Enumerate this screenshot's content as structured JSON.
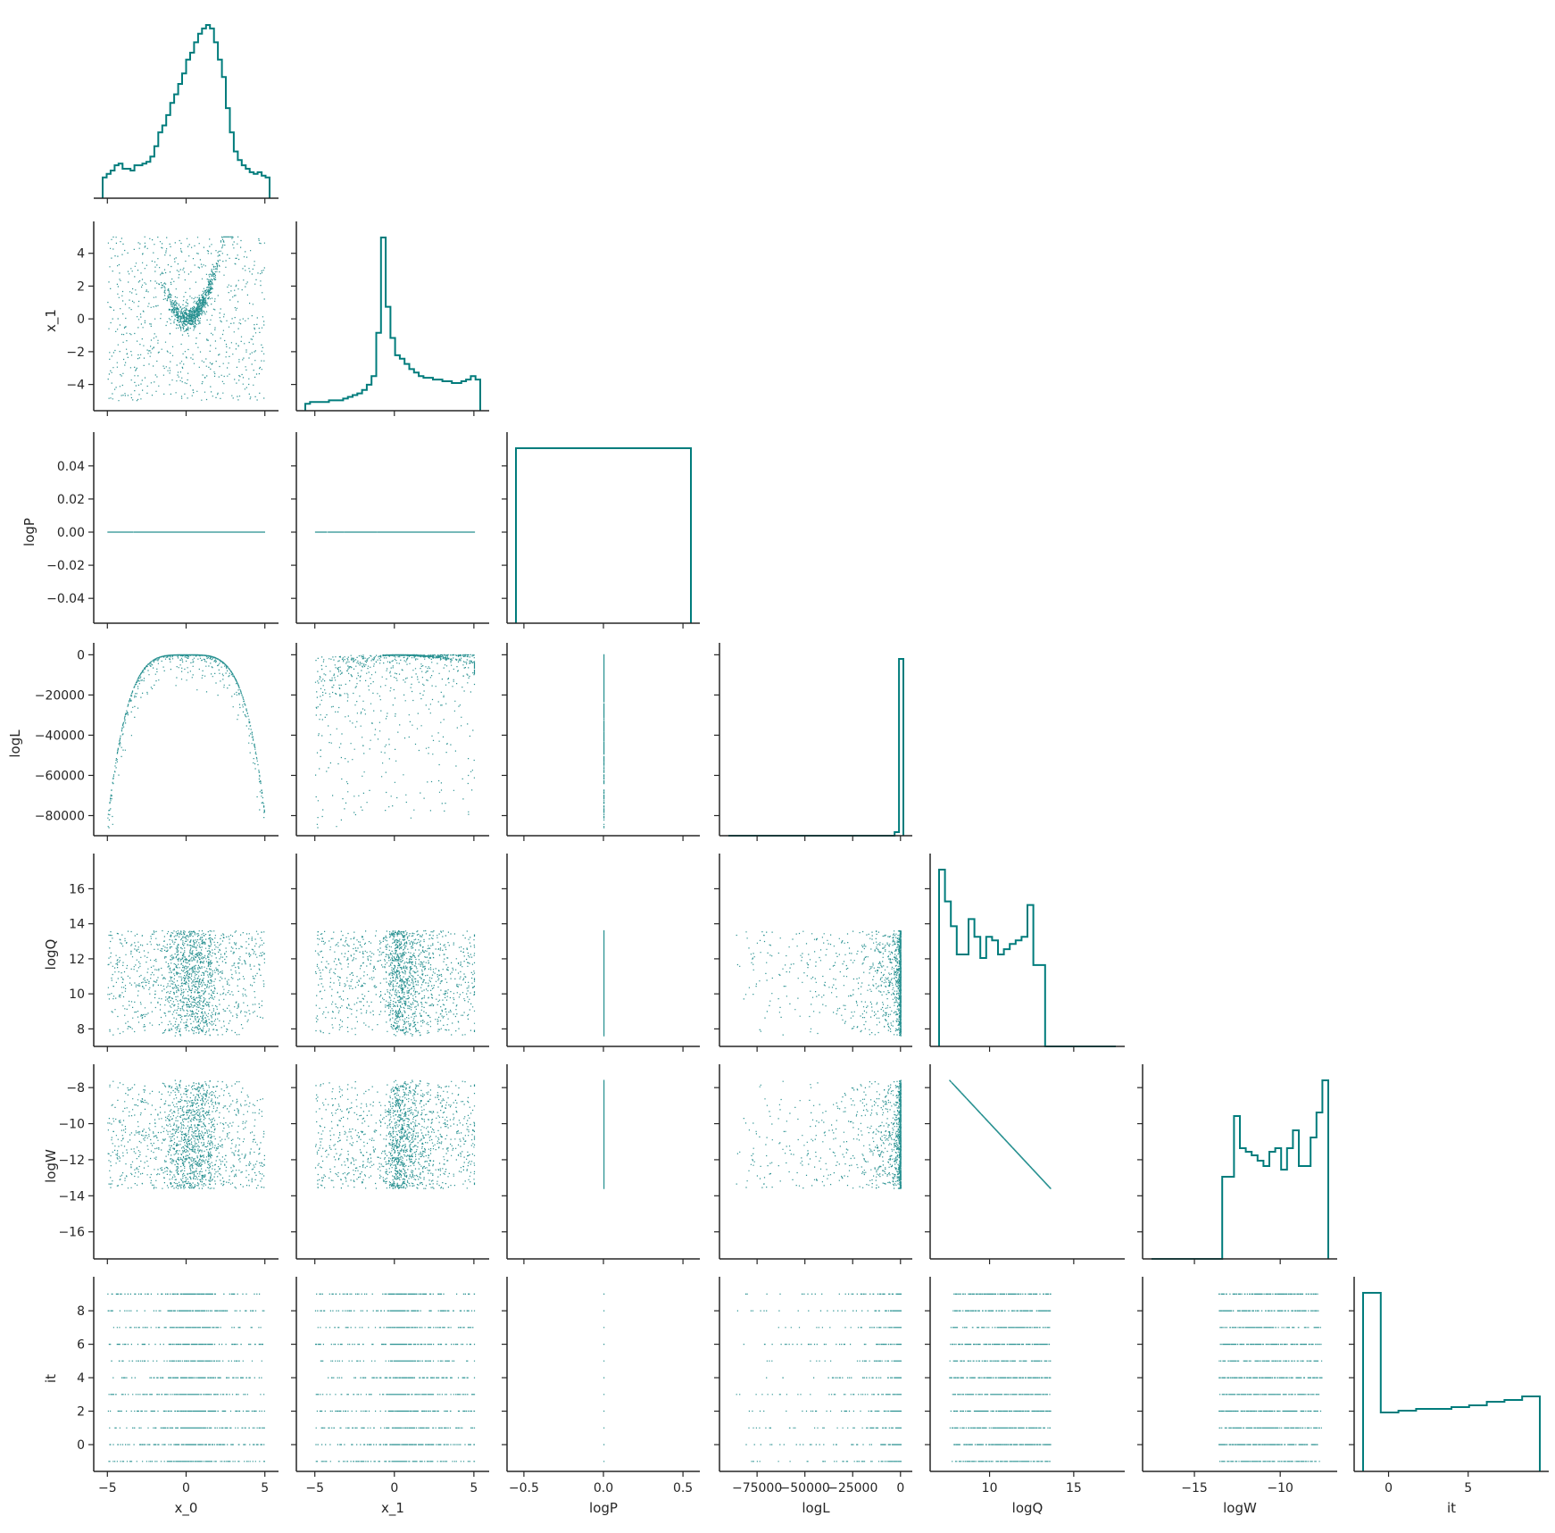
{
  "chart_data": {
    "type": "pairplot",
    "title": "",
    "color": "#007c7c",
    "variables": [
      "x_0",
      "x_1",
      "logP",
      "logL",
      "logQ",
      "logW",
      "it"
    ],
    "ranges": {
      "x_0": [
        -5.3,
        5.3
      ],
      "x_1": [
        -5.6,
        5.4
      ],
      "logP": [
        -0.055,
        0.055
      ],
      "logL": [
        -90000,
        1500
      ],
      "logQ": [
        7.0,
        17.5
      ],
      "logW": [
        -17.5,
        -7.2
      ],
      "it": [
        -1.6,
        9.5
      ]
    },
    "ticks": {
      "x_0": [
        -5,
        0,
        5
      ],
      "x_1": [
        -4,
        -2,
        0,
        2,
        4
      ],
      "logP": [
        -0.04,
        -0.02,
        0.0,
        0.02,
        0.04
      ],
      "logL": [
        -80000,
        -60000,
        -40000,
        -20000,
        0
      ],
      "logQ": [
        8,
        10,
        12,
        14,
        16
      ],
      "logW": [
        -16,
        -14,
        -12,
        -10,
        -8
      ],
      "it": [
        0,
        2,
        4,
        6,
        8
      ]
    },
    "tick_labels": {
      "x_0": [
        "−5",
        "0",
        "5"
      ],
      "x_1y": [
        "−4",
        "−2",
        "0",
        "2",
        "4"
      ],
      "x_1x": [
        "−5",
        "0",
        "5"
      ],
      "logPy": [
        "−0.04",
        "−0.02",
        "0.00",
        "0.02",
        "0.04"
      ],
      "logPx": [
        "−0.5",
        "0.0",
        "0.5"
      ],
      "logLy": [
        "−80000",
        "−60000",
        "−40000",
        "−20000",
        "0"
      ],
      "logLx": [
        "−75000",
        "−50000",
        "−25000",
        "0"
      ],
      "logQ": [
        "8",
        "10",
        "12",
        "14",
        "16"
      ],
      "logQx": [
        "10",
        "15"
      ],
      "logW": [
        "−16",
        "−14",
        "−12",
        "−10",
        "−8"
      ],
      "logWx": [
        "−15",
        "−10"
      ],
      "ity": [
        "0",
        "2",
        "4",
        "6",
        "8"
      ],
      "itx": [
        "0",
        "5"
      ]
    },
    "x_tick_values": {
      "x_0": [
        -5,
        0,
        5
      ],
      "x_1": [
        -5,
        0,
        5
      ],
      "logP": [
        -0.5,
        0.0,
        0.5
      ],
      "logL": [
        -75000,
        -50000,
        -25000,
        0
      ],
      "logQ": [
        10,
        15
      ],
      "logW": [
        -15,
        -10
      ],
      "it": [
        0,
        5
      ]
    },
    "x_ranges": {
      "logP": [
        -0.55,
        0.55
      ]
    },
    "histograms": {
      "x_0": [
        0.12,
        0.14,
        0.16,
        0.19,
        0.2,
        0.17,
        0.17,
        0.16,
        0.19,
        0.19,
        0.2,
        0.21,
        0.24,
        0.3,
        0.38,
        0.42,
        0.48,
        0.55,
        0.6,
        0.66,
        0.72,
        0.8,
        0.84,
        0.9,
        0.95,
        0.98,
        1.0,
        0.98,
        0.9,
        0.8,
        0.7,
        0.52,
        0.38,
        0.27,
        0.22,
        0.19,
        0.17,
        0.15,
        0.14,
        0.15,
        0.13,
        0.12
      ],
      "x_1": [
        0.04,
        0.05,
        0.05,
        0.05,
        0.05,
        0.06,
        0.06,
        0.06,
        0.07,
        0.08,
        0.09,
        0.1,
        0.12,
        0.15,
        0.2,
        0.45,
        1.0,
        0.6,
        0.42,
        0.32,
        0.3,
        0.27,
        0.24,
        0.22,
        0.2,
        0.19,
        0.19,
        0.18,
        0.18,
        0.17,
        0.17,
        0.16,
        0.16,
        0.17,
        0.18,
        0.2,
        0.18
      ],
      "logP": [
        1.0
      ],
      "logL": [
        0.0,
        0.0,
        0.0,
        0.0,
        0.0,
        0.0,
        0.0,
        0.0,
        0.0,
        0.0,
        0.0,
        0.0,
        0.0,
        0.0,
        0.0,
        0.0,
        0.0,
        0.0,
        0.0,
        0.0,
        0.0,
        0.0,
        0.0,
        0.0,
        0.0,
        0.0,
        0.0,
        0.0,
        0.0,
        0.0,
        0.0,
        0.0,
        0.0,
        0.0,
        0.0,
        0.0,
        0.0,
        0.0,
        0.02,
        1.0
      ],
      "logQ": [
        1.0,
        0.82,
        0.68,
        0.52,
        0.52,
        0.72,
        0.62,
        0.5,
        0.62,
        0.6,
        0.52,
        0.55,
        0.58,
        0.6,
        0.62,
        0.8,
        0.46,
        0.46,
        0.0,
        0.0,
        0.0,
        0.0,
        0.0,
        0.0,
        0.0,
        0.0,
        0.0,
        0.0,
        0.0,
        0.0
      ],
      "logW": [
        0.0,
        0.0,
        0.0,
        0.0,
        0.0,
        0.0,
        0.0,
        0.0,
        0.0,
        0.0,
        0.0,
        0.0,
        0.46,
        0.46,
        0.8,
        0.62,
        0.6,
        0.58,
        0.55,
        0.52,
        0.6,
        0.62,
        0.5,
        0.62,
        0.72,
        0.52,
        0.52,
        0.68,
        0.82,
        1.0
      ],
      "it": [
        1.0,
        0.33,
        0.34,
        0.35,
        0.35,
        0.36,
        0.37,
        0.39,
        0.4,
        0.42
      ]
    },
    "scatter_shapes": {
      "x_1_vs_x_0": "parabola x_1 = x_0^2 plus uniform noise",
      "logW_vs_logQ": "line logW = -logQ"
    },
    "grid": false,
    "legend": "none"
  }
}
